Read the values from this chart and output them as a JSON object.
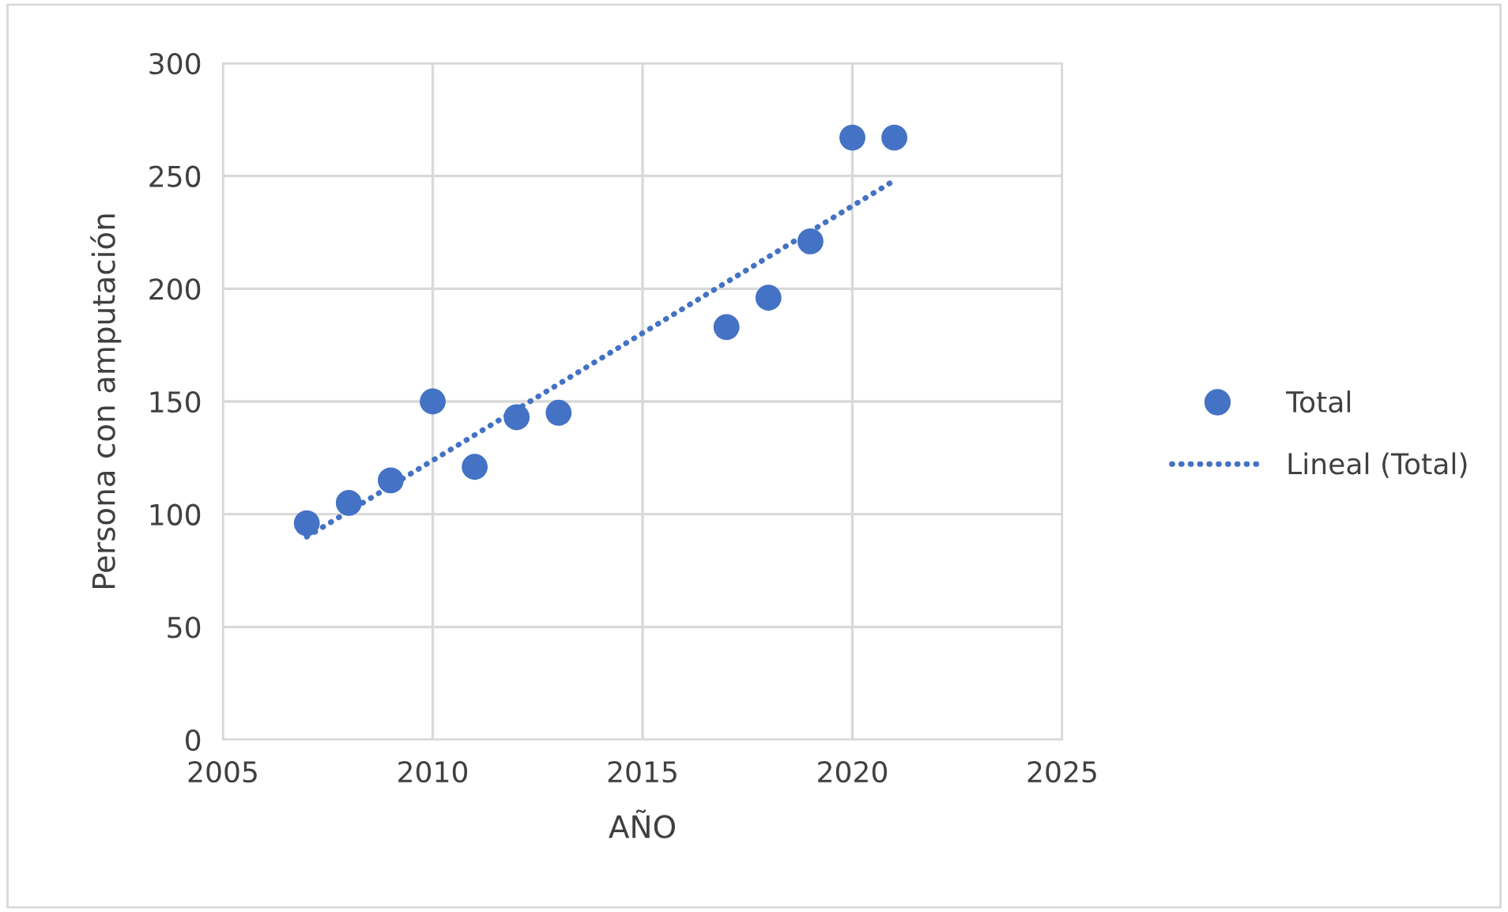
{
  "chart_data": {
    "type": "scatter",
    "xlabel": "AÑO",
    "ylabel": "Persona con amputación",
    "xlim": [
      2005,
      2025
    ],
    "xticks": [
      2005,
      2010,
      2015,
      2020,
      2025
    ],
    "ylim": [
      0,
      300
    ],
    "yticks": [
      0,
      50,
      100,
      150,
      200,
      250,
      300
    ],
    "grid": true,
    "legend": "right",
    "series": [
      {
        "name": "Total",
        "marker": "circle",
        "color": "#4472c4",
        "x": [
          2007,
          2008,
          2009,
          2010,
          2011,
          2012,
          2013,
          2017,
          2018,
          2019,
          2020,
          2021
        ],
        "values": [
          96,
          105,
          115,
          150,
          121,
          143,
          145,
          183,
          196,
          221,
          267,
          267
        ]
      },
      {
        "name": "Lineal (Total)",
        "type": "line",
        "color": "#4472c4",
        "line_style": "dotted",
        "marker": "none",
        "x": [
          2007,
          2021
        ],
        "values": [
          90,
          248
        ]
      }
    ]
  }
}
